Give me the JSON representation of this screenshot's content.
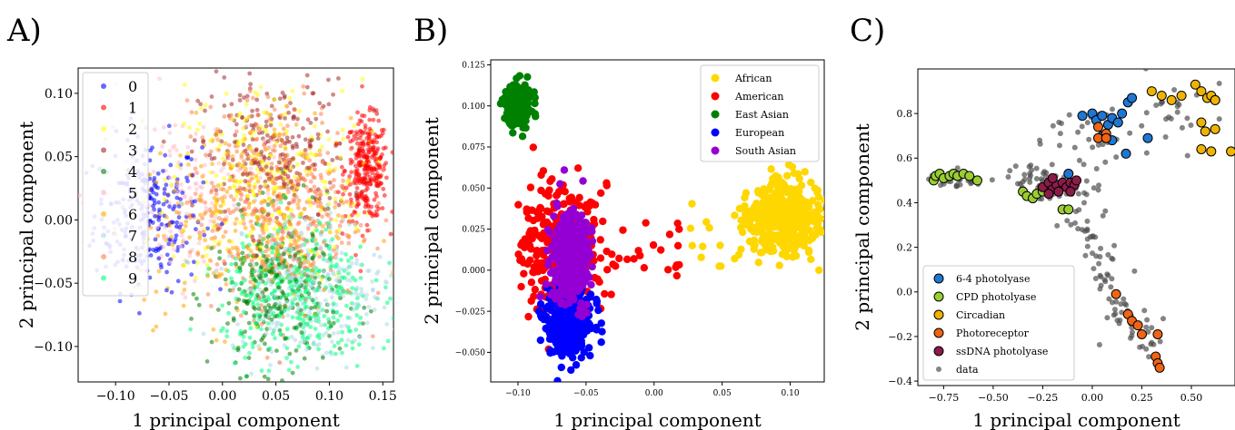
{
  "figure": {
    "panel_labels": [
      "A)",
      "B)",
      "C)"
    ]
  },
  "colors": {
    "A": [
      "#0000ff",
      "#ff0000",
      "#ffff00",
      "#a52a2a",
      "#008000",
      "#ffc0cb",
      "#ffa500",
      "#add8e6",
      "#ff7f50",
      "#00ff7f"
    ],
    "B": {
      "African": "#ffd700",
      "American": "#ff0000",
      "East Asian": "#008000",
      "European": "#0000ff",
      "South Asian": "#9400d3"
    },
    "C": {
      "6-4 photolyase": "#1f77d4",
      "CPD photolyase": "#9acd32",
      "Circadian": "#f0b400",
      "Photoreceptor": "#f06414",
      "ssDNA photolyase": "#8b1c4a",
      "data": "#505050"
    }
  },
  "chart_data": [
    {
      "panel": "A)",
      "type": "scatter",
      "xlabel": "1 principal component",
      "ylabel": "2 principal component",
      "xlim": [
        -0.135,
        0.16
      ],
      "ylim": [
        -0.128,
        0.12
      ],
      "xticks": [
        "-0.10",
        "-0.05",
        "0.00",
        "0.05",
        "0.10",
        "0.15"
      ],
      "yticks": [
        "-0.10",
        "-0.05",
        "0.00",
        "0.05",
        "0.10"
      ],
      "legend": [
        "0",
        "1",
        "2",
        "3",
        "4",
        "5",
        "6",
        "7",
        "8",
        "9"
      ],
      "legend_position": "upper-left",
      "series": [
        {
          "name": "0",
          "cx": -0.07,
          "cy": 0.005,
          "sx": 0.025,
          "sy": 0.03,
          "n": 260
        },
        {
          "name": "1",
          "cx": 0.135,
          "cy": 0.04,
          "sx": 0.01,
          "sy": 0.02,
          "n": 300
        },
        {
          "name": "2",
          "cx": 0.04,
          "cy": 0.03,
          "sx": 0.045,
          "sy": 0.04,
          "n": 260
        },
        {
          "name": "3",
          "cx": 0.05,
          "cy": 0.05,
          "sx": 0.035,
          "sy": 0.03,
          "n": 260
        },
        {
          "name": "4",
          "cx": 0.05,
          "cy": -0.06,
          "sx": 0.03,
          "sy": 0.03,
          "n": 260
        },
        {
          "name": "5",
          "cx": -0.04,
          "cy": 0.02,
          "sx": 0.04,
          "sy": 0.035,
          "n": 160
        },
        {
          "name": "6",
          "cx": 0.02,
          "cy": 0.0,
          "sx": 0.05,
          "sy": 0.04,
          "n": 300
        },
        {
          "name": "7",
          "cx": 0.08,
          "cy": -0.05,
          "sx": 0.035,
          "sy": 0.03,
          "n": 300
        },
        {
          "name": "8",
          "cx": 0.05,
          "cy": 0.01,
          "sx": 0.04,
          "sy": 0.04,
          "n": 420
        },
        {
          "name": "9",
          "cx": 0.07,
          "cy": -0.06,
          "sx": 0.035,
          "sy": 0.03,
          "n": 360
        }
      ]
    },
    {
      "panel": "B)",
      "type": "scatter",
      "xlabel": "1 principal component",
      "ylabel": "2 principal component",
      "xlim": [
        -0.12,
        0.125
      ],
      "ylim": [
        -0.068,
        0.128
      ],
      "xticks": [
        "-0.10",
        "-0.05",
        "0.00",
        "0.05",
        "0.10"
      ],
      "yticks": [
        "-0.050",
        "-0.025",
        "0.000",
        "0.025",
        "0.050",
        "0.075",
        "0.100",
        "0.125"
      ],
      "legend": [
        "African",
        "American",
        "East Asian",
        "European",
        "South Asian"
      ],
      "legend_position": "upper-right",
      "series": [
        {
          "name": "African",
          "cx": 0.095,
          "cy": 0.032,
          "sx": 0.014,
          "sy": 0.011,
          "n": 420
        },
        {
          "name": "American",
          "cx": -0.07,
          "cy": 0.012,
          "sx": 0.014,
          "sy": 0.02,
          "n": 320
        },
        {
          "name": "East Asian",
          "cx": -0.1,
          "cy": 0.1,
          "sx": 0.005,
          "sy": 0.007,
          "n": 220
        },
        {
          "name": "European",
          "cx": -0.062,
          "cy": -0.03,
          "sx": 0.008,
          "sy": 0.011,
          "n": 380
        },
        {
          "name": "South Asian",
          "cx": -0.062,
          "cy": 0.008,
          "sx": 0.007,
          "sy": 0.014,
          "n": 380
        }
      ]
    },
    {
      "panel": "C)",
      "type": "scatter",
      "xlabel": "1 principal component",
      "ylabel": "2 principal component",
      "xlim": [
        -0.88,
        0.72
      ],
      "ylim": [
        -0.42,
        1.0
      ],
      "xticks": [
        "-0.75",
        "-0.50",
        "-0.25",
        "0.00",
        "0.25",
        "0.50"
      ],
      "yticks": [
        "-0.4",
        "-0.2",
        "0.0",
        "0.2",
        "0.4",
        "0.6",
        "0.8"
      ],
      "legend": [
        "6-4 photolyase",
        "CPD photolyase",
        "Circadian",
        "Photoreceptor",
        "ssDNA photolyase",
        "data"
      ],
      "legend_position": "lower-left",
      "series": [
        {
          "name": "6-4 photolyase",
          "points": [
            [
              -0.05,
              0.79
            ],
            [
              0.0,
              0.8
            ],
            [
              0.02,
              0.77
            ],
            [
              0.05,
              0.79
            ],
            [
              0.08,
              0.75
            ],
            [
              0.1,
              0.78
            ],
            [
              0.13,
              0.76
            ],
            [
              0.15,
              0.8
            ],
            [
              0.18,
              0.85
            ],
            [
              0.2,
              0.87
            ],
            [
              0.05,
              0.7
            ],
            [
              0.1,
              0.68
            ],
            [
              0.17,
              0.62
            ],
            [
              0.28,
              0.69
            ],
            [
              -0.12,
              0.53
            ]
          ]
        },
        {
          "name": "CPD photolyase",
          "points": [
            [
              -0.8,
              0.5
            ],
            [
              -0.79,
              0.52
            ],
            [
              -0.77,
              0.53
            ],
            [
              -0.75,
              0.51
            ],
            [
              -0.72,
              0.52
            ],
            [
              -0.7,
              0.53
            ],
            [
              -0.68,
              0.52
            ],
            [
              -0.65,
              0.53
            ],
            [
              -0.62,
              0.52
            ],
            [
              -0.58,
              0.5
            ],
            [
              -0.35,
              0.45
            ],
            [
              -0.33,
              0.43
            ],
            [
              -0.3,
              0.42
            ],
            [
              -0.28,
              0.44
            ],
            [
              -0.25,
              0.45
            ],
            [
              -0.15,
              0.37
            ],
            [
              -0.12,
              0.37
            ]
          ]
        },
        {
          "name": "Circadian",
          "points": [
            [
              0.3,
              0.9
            ],
            [
              0.35,
              0.88
            ],
            [
              0.4,
              0.86
            ],
            [
              0.45,
              0.88
            ],
            [
              0.52,
              0.93
            ],
            [
              0.55,
              0.9
            ],
            [
              0.58,
              0.87
            ],
            [
              0.6,
              0.88
            ],
            [
              0.62,
              0.86
            ],
            [
              0.55,
              0.76
            ],
            [
              0.57,
              0.72
            ],
            [
              0.62,
              0.73
            ],
            [
              0.55,
              0.64
            ],
            [
              0.6,
              0.63
            ],
            [
              0.7,
              0.63
            ],
            [
              0.62,
              0.86
            ]
          ]
        },
        {
          "name": "Photoreceptor",
          "points": [
            [
              0.03,
              0.74
            ],
            [
              0.07,
              0.71
            ],
            [
              0.03,
              0.69
            ],
            [
              0.07,
              0.69
            ],
            [
              0.12,
              -0.01
            ],
            [
              0.18,
              -0.1
            ],
            [
              0.2,
              -0.13
            ],
            [
              0.23,
              -0.15
            ],
            [
              0.25,
              -0.19
            ],
            [
              0.33,
              -0.19
            ],
            [
              0.32,
              -0.29
            ],
            [
              0.33,
              -0.32
            ],
            [
              0.34,
              -0.34
            ]
          ]
        },
        {
          "name": "ssDNA photolyase",
          "points": [
            [
              -0.25,
              0.47
            ],
            [
              -0.22,
              0.49
            ],
            [
              -0.2,
              0.46
            ],
            [
              -0.18,
              0.48
            ],
            [
              -0.15,
              0.49
            ],
            [
              -0.13,
              0.47
            ],
            [
              -0.11,
              0.49
            ],
            [
              -0.09,
              0.48
            ],
            [
              -0.22,
              0.44
            ],
            [
              -0.17,
              0.45
            ],
            [
              -0.11,
              0.45
            ],
            [
              -0.08,
              0.5
            ],
            [
              -0.2,
              0.51
            ]
          ]
        },
        {
          "name": "data",
          "clusters": [
            {
              "cx": -0.7,
              "cy": 0.51,
              "sx": 0.07,
              "sy": 0.02,
              "n": 30
            },
            {
              "cx": -0.2,
              "cy": 0.48,
              "sx": 0.1,
              "sy": 0.04,
              "n": 60
            },
            {
              "cx": -0.05,
              "cy": 0.3,
              "sx": 0.06,
              "sy": 0.08,
              "n": 25
            },
            {
              "cx": 0.05,
              "cy": 0.1,
              "sx": 0.06,
              "sy": 0.08,
              "n": 20
            },
            {
              "cx": 0.15,
              "cy": -0.07,
              "sx": 0.05,
              "sy": 0.06,
              "n": 25
            },
            {
              "cx": 0.28,
              "cy": -0.22,
              "sx": 0.04,
              "sy": 0.05,
              "n": 15
            },
            {
              "cx": 0.05,
              "cy": 0.72,
              "sx": 0.15,
              "sy": 0.08,
              "n": 35
            },
            {
              "cx": 0.45,
              "cy": 0.82,
              "sx": 0.1,
              "sy": 0.08,
              "n": 20
            }
          ]
        }
      ]
    }
  ]
}
